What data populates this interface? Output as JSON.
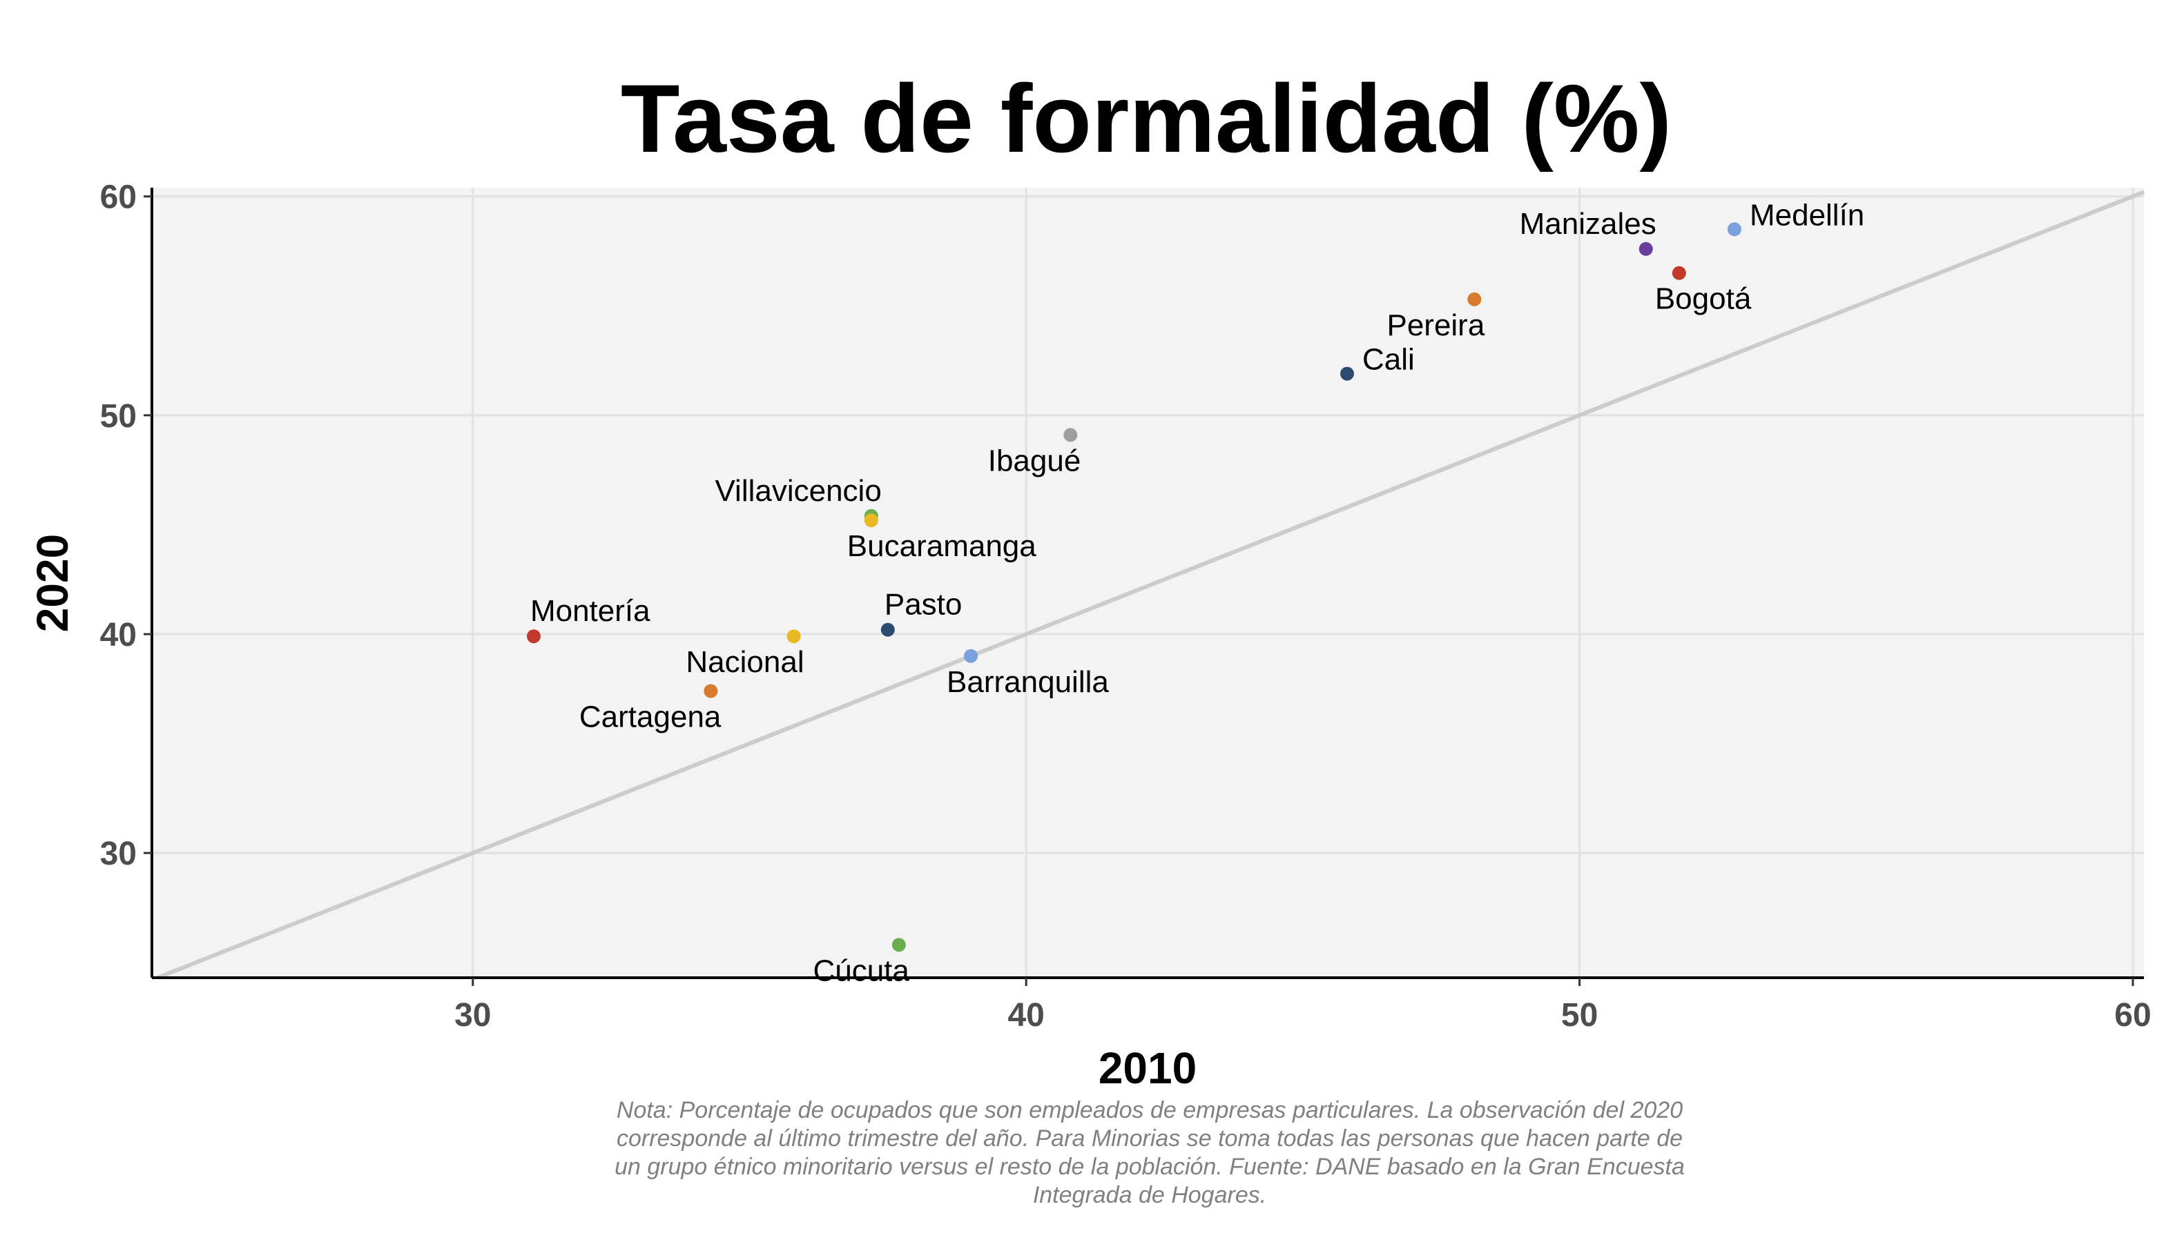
{
  "chart_data": {
    "type": "scatter",
    "title": "Tasa de formalidad (%)",
    "xlabel": "2010",
    "ylabel": "2020",
    "xlim": [
      24.2,
      60.2
    ],
    "ylim": [
      24.3,
      60.4
    ],
    "x_ticks": [
      30,
      40,
      50,
      60
    ],
    "y_ticks": [
      30,
      40,
      50,
      60
    ],
    "grid": true,
    "reference_line": {
      "type": "identity",
      "color": "#cccccc"
    },
    "panel_background": "#f3f3f3",
    "points": [
      {
        "label": "Medellín",
        "x": 52.8,
        "y": 58.5,
        "color": "#7aa1db",
        "label_pos": "right"
      },
      {
        "label": "Manizales",
        "x": 51.2,
        "y": 57.6,
        "color": "#6a3d9a",
        "label_pos": "upper-left"
      },
      {
        "label": "Bogotá",
        "x": 51.8,
        "y": 56.5,
        "color": "#c0392b",
        "label_pos": "lower-right"
      },
      {
        "label": "Pereira",
        "x": 48.1,
        "y": 55.3,
        "color": "#d97b2e",
        "label_pos": "lower-left"
      },
      {
        "label": "Cali",
        "x": 45.8,
        "y": 51.9,
        "color": "#2c4a6e",
        "label_pos": "right"
      },
      {
        "label": "Ibagué",
        "x": 40.8,
        "y": 49.1,
        "color": "#9e9e9e",
        "label_pos": "lower-left"
      },
      {
        "label": "Villavicencio",
        "x": 37.2,
        "y": 45.4,
        "color": "#6aae4f",
        "label_pos": "upper-left"
      },
      {
        "label": "Bucaramanga",
        "x": 37.2,
        "y": 45.2,
        "color": "#e9b824",
        "label_pos": "lower-right"
      },
      {
        "label": "Montería",
        "x": 31.1,
        "y": 39.9,
        "color": "#c0392b",
        "label_pos": "upper-right"
      },
      {
        "label": "Nacional",
        "x": 35.8,
        "y": 39.9,
        "color": "#e9b824",
        "label_pos": "lower-left"
      },
      {
        "label": "Pasto",
        "x": 37.5,
        "y": 40.2,
        "color": "#2c4a6e",
        "label_pos": "upper-right"
      },
      {
        "label": "Barranquilla",
        "x": 39.0,
        "y": 39.0,
        "color": "#7aa1db",
        "label_pos": "lower-right"
      },
      {
        "label": "Cartagena",
        "x": 34.3,
        "y": 37.4,
        "color": "#d97b2e",
        "label_pos": "lower-left"
      },
      {
        "label": "Cúcuta",
        "x": 37.7,
        "y": 25.8,
        "color": "#6aae4f",
        "label_pos": "lower-left"
      }
    ],
    "note_lines": [
      "Nota: Porcentaje de ocupados que son empleados de empresas particulares. La observación del 2020",
      "corresponde al último trimestre del año. Para Minorias se toma todas las personas que hacen parte de",
      "un grupo étnico minoritario versus el resto de la población. Fuente: DANE basado en la Gran Encuesta",
      "Integrada de Hogares."
    ]
  }
}
